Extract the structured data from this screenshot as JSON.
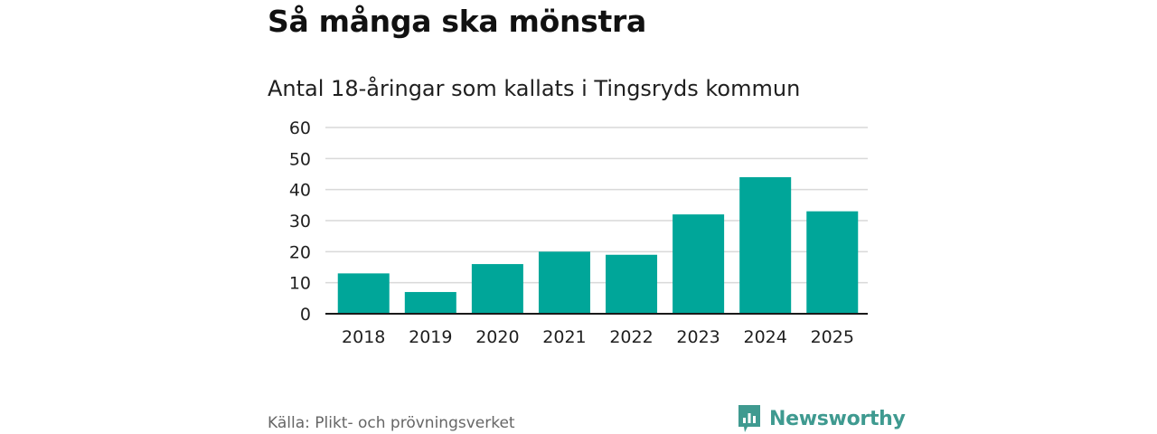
{
  "header": {
    "title": "Så många ska mönstra",
    "subtitle": "Antal 18-åringar som kallats i Tingsryds kommun"
  },
  "footer": {
    "source": "Källa: Plikt- och prövningsverket",
    "brand": "Newsworthy",
    "brand_icon": "newsworthy-logo-icon"
  },
  "colors": {
    "bar": "#00a699",
    "brand": "#3f9a90",
    "grid": "#d9d9d9",
    "axis": "#1a1a1a"
  },
  "chart_data": {
    "type": "bar",
    "title": "Så många ska mönstra",
    "subtitle": "Antal 18-åringar som kallats i Tingsryds kommun",
    "xlabel": "",
    "ylabel": "",
    "categories": [
      "2018",
      "2019",
      "2020",
      "2021",
      "2022",
      "2023",
      "2024",
      "2025"
    ],
    "values": [
      13,
      7,
      16,
      20,
      19,
      32,
      44,
      33
    ],
    "ylim": [
      0,
      60
    ],
    "yticks": [
      "0",
      "10",
      "20",
      "30",
      "40",
      "50",
      "60"
    ],
    "grid": true,
    "legend": "none"
  }
}
